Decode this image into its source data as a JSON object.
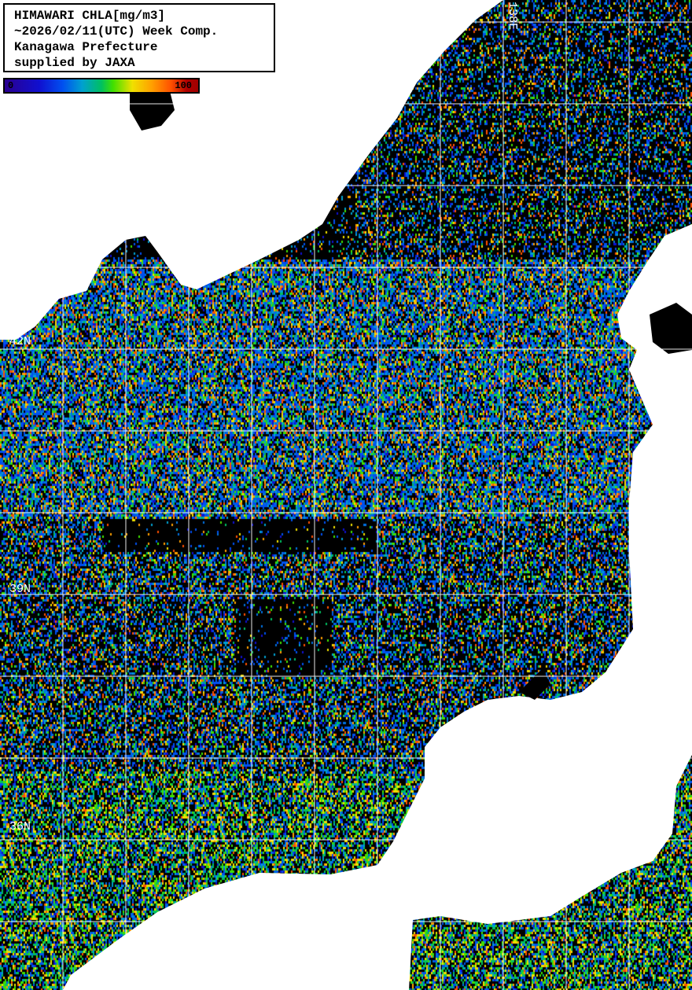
{
  "title": {
    "lines": [
      "HIMAWARI CHLA[mg/m3]",
      "~2026/02/11(UTC) Week Comp.",
      "Kanagawa Prefecture",
      "supplied by JAXA"
    ]
  },
  "colorbar": {
    "min_label": "0",
    "max_label": "100",
    "min_value": 0,
    "max_value": 100,
    "unit": "mg/m3"
  },
  "grid": {
    "lat_labels": [
      "42N",
      "39N",
      "36N"
    ],
    "lon_labels": [
      "138E"
    ]
  },
  "colors": {
    "land": "#ffffff",
    "no_data": "#000000",
    "grid": "#ffffff",
    "palette": [
      "#2a0090",
      "#1010d0",
      "#0050f0",
      "#00a0d0",
      "#00c060",
      "#40e000",
      "#f0e000",
      "#ffa000",
      "#ff5000",
      "#a00000"
    ]
  }
}
